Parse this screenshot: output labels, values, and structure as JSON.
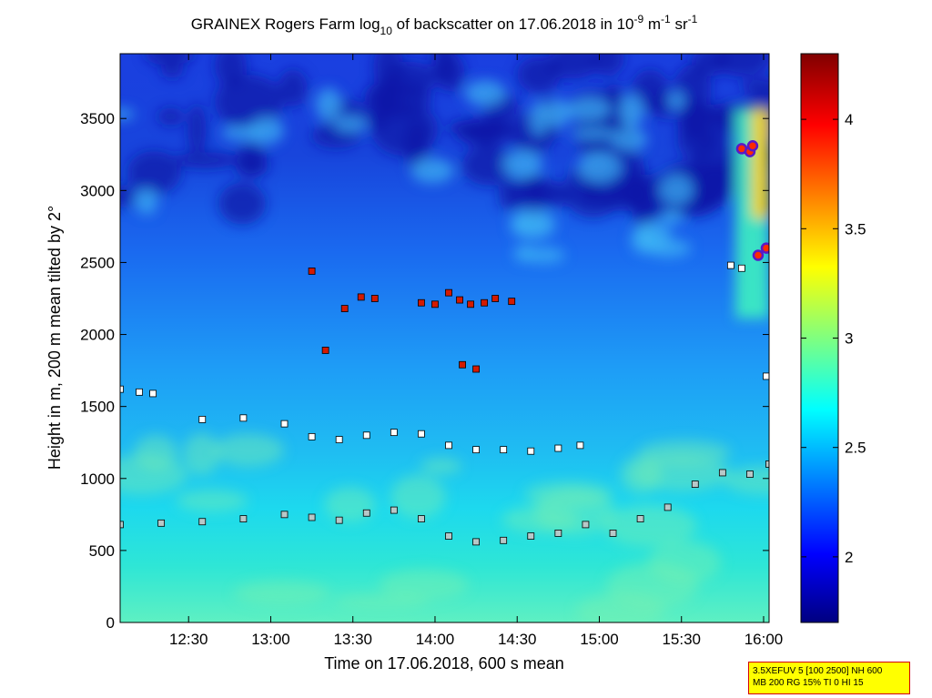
{
  "chart_data": {
    "type": "heatmap",
    "title": {
      "main": "GRAINEX Rogers Farm log",
      "main_sub": "10",
      "mid": " of backscatter on 17.06.2018 in 10",
      "exp1": "-9",
      "unit1": " m",
      "exp2": "-1",
      "unit2": " sr",
      "exp3": "-1"
    },
    "xlabel": "Time on 17.06.2018, 600 s mean",
    "ylabel": "Height in m, 200 m mean tilted by 2°",
    "xlim": [
      "12:05",
      "16:02"
    ],
    "ylim": [
      0,
      3950
    ],
    "xticks": [
      {
        "t": "12:30",
        "label": "12:30"
      },
      {
        "t": "13:00",
        "label": "13:00"
      },
      {
        "t": "13:30",
        "label": "13:30"
      },
      {
        "t": "14:00",
        "label": "14:00"
      },
      {
        "t": "14:30",
        "label": "14:30"
      },
      {
        "t": "15:00",
        "label": "15:00"
      },
      {
        "t": "15:30",
        "label": "15:30"
      },
      {
        "t": "16:00",
        "label": "16:00"
      }
    ],
    "yticks": [
      0,
      500,
      1000,
      1500,
      2000,
      2500,
      3000,
      3500
    ],
    "colorbar": {
      "range": [
        1.7,
        4.3
      ],
      "ticks": [
        {
          "v": 2.0,
          "label": "2"
        },
        {
          "v": 2.5,
          "label": "2.5"
        },
        {
          "v": 3.0,
          "label": "3"
        },
        {
          "v": 3.5,
          "label": "3.5"
        },
        {
          "v": 4.0,
          "label": "4"
        }
      ]
    },
    "layers": [
      {
        "name": "",
        "marker": "gray-square",
        "points": [
          [
            "12:05",
            680
          ],
          [
            "12:20",
            690
          ],
          [
            "12:35",
            700
          ],
          [
            "12:50",
            720
          ],
          [
            "13:05",
            750
          ],
          [
            "13:15",
            730
          ],
          [
            "13:25",
            710
          ],
          [
            "13:35",
            760
          ],
          [
            "13:45",
            780
          ],
          [
            "13:55",
            720
          ],
          [
            "14:05",
            600
          ],
          [
            "14:15",
            560
          ],
          [
            "14:25",
            570
          ],
          [
            "14:35",
            600
          ],
          [
            "14:45",
            620
          ],
          [
            "14:55",
            680
          ],
          [
            "15:05",
            620
          ],
          [
            "15:15",
            720
          ],
          [
            "15:25",
            800
          ],
          [
            "15:35",
            960
          ],
          [
            "15:45",
            1040
          ],
          [
            "15:55",
            1030
          ],
          [
            "16:02",
            1100
          ]
        ]
      },
      {
        "name": "",
        "marker": "white-square",
        "points": [
          [
            "12:05",
            1620
          ],
          [
            "12:12",
            1600
          ],
          [
            "12:17",
            1590
          ],
          [
            "12:35",
            1410
          ],
          [
            "12:50",
            1420
          ],
          [
            "13:05",
            1380
          ],
          [
            "13:15",
            1290
          ],
          [
            "13:25",
            1270
          ],
          [
            "13:35",
            1300
          ],
          [
            "13:45",
            1320
          ],
          [
            "13:55",
            1310
          ],
          [
            "14:05",
            1230
          ],
          [
            "14:15",
            1200
          ],
          [
            "14:25",
            1200
          ],
          [
            "14:35",
            1190
          ],
          [
            "14:45",
            1210
          ],
          [
            "14:53",
            1230
          ],
          [
            "15:48",
            2480
          ],
          [
            "15:52",
            2460
          ],
          [
            "16:01",
            1710
          ]
        ]
      },
      {
        "name": "",
        "marker": "red-square",
        "points": [
          [
            "13:15",
            2440
          ],
          [
            "13:20",
            1890
          ],
          [
            "13:27",
            2180
          ],
          [
            "13:33",
            2260
          ],
          [
            "13:38",
            2250
          ],
          [
            "13:55",
            2220
          ],
          [
            "14:00",
            2210
          ],
          [
            "14:05",
            2290
          ],
          [
            "14:09",
            2240
          ],
          [
            "14:13",
            2210
          ],
          [
            "14:10",
            1790
          ],
          [
            "14:15",
            1760
          ],
          [
            "14:18",
            2220
          ],
          [
            "14:22",
            2250
          ],
          [
            "14:28",
            2230
          ]
        ]
      },
      {
        "name": "",
        "marker": "purple-circle",
        "points": [
          [
            "15:52",
            3290
          ],
          [
            "15:55",
            3270
          ],
          [
            "15:56",
            3310
          ],
          [
            "15:58",
            2550
          ],
          [
            "16:01",
            2600
          ]
        ]
      }
    ]
  },
  "info_box": {
    "line1": "3.5XEFUV 5 [100 2500] NH 600",
    "line2": "MB 200 RG 15% TI 0 HI 15"
  }
}
